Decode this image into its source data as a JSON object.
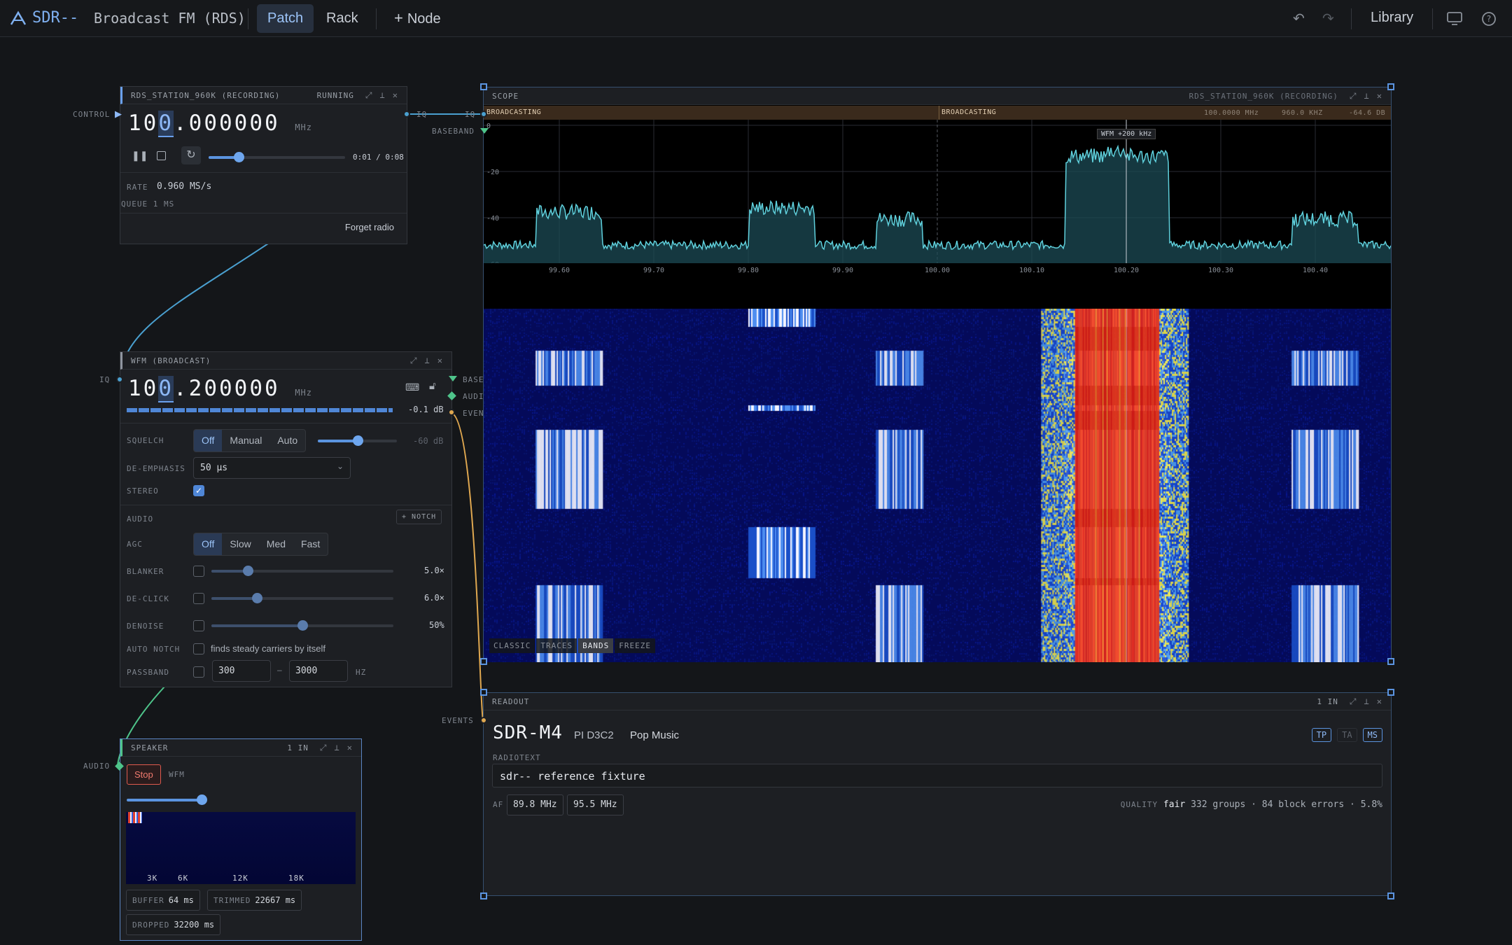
{
  "app": {
    "name": "SDR--",
    "session": "Broadcast FM (RDS)"
  },
  "topbar": {
    "tabs": [
      "Patch",
      "Rack"
    ],
    "add_node": "Node",
    "library": "Library"
  },
  "recorder": {
    "title": "RDS_STATION_960K (RECORDING)",
    "status": "RUNNING",
    "freq_pre": "10",
    "freq_cursor": "0",
    "freq_post": ".000000",
    "unit": "MHz",
    "playback_time": "0:01 / 0:08",
    "playback_progress": 0.22,
    "rate_label": "RATE",
    "rate_value": "0.960 MS/s",
    "queue": "QUEUE 1 MS",
    "forget": "Forget radio",
    "port_in": "CONTROL",
    "port_out": "IQ"
  },
  "wfm": {
    "title": "WFM (BROADCAST)",
    "freq_pre": "10",
    "freq_cursor": "0",
    "freq_post": ".200000",
    "unit": "MHz",
    "level_db": "-0.1 dB",
    "level": 0.97,
    "port_in": "IQ",
    "ports_out": [
      "BASE",
      "AUDI",
      "EVEN"
    ],
    "squelch": {
      "label": "SQUELCH",
      "options": [
        "Off",
        "Manual",
        "Auto"
      ],
      "selected": "Off",
      "value": "-60 dB",
      "level": 0.5
    },
    "deemph": {
      "label": "DE-EMPHASIS",
      "value": "50 µs"
    },
    "stereo": {
      "label": "STEREO",
      "checked": true
    },
    "audio": {
      "label": "AUDIO",
      "notch": "NOTCH"
    },
    "agc": {
      "label": "AGC",
      "options": [
        "Off",
        "Slow",
        "Med",
        "Fast"
      ],
      "selected": "Off"
    },
    "blanker": {
      "label": "BLANKER",
      "value": "5.0×",
      "level": 0.2
    },
    "declick": {
      "label": "DE-CLICK",
      "value": "6.0×",
      "level": 0.25
    },
    "denoise": {
      "label": "DENOISE",
      "value": "50%",
      "level": 0.5
    },
    "autonotch": {
      "label": "AUTO NOTCH",
      "text": "finds steady carriers by itself"
    },
    "passband": {
      "label": "PASSBAND",
      "low": "300",
      "high": "3000",
      "unit": "HZ"
    }
  },
  "scope": {
    "title": "SCOPE",
    "source": "RDS_STATION_960K (RECORDING)",
    "band_labels": [
      "BROADCASTING",
      "BROADCASTING"
    ],
    "readout": [
      "100.0000 MHz",
      "960.0 KHZ",
      "-64.6 DB"
    ],
    "marker": "WFM +200 kHz",
    "port_in": "IQ",
    "port_in2": "BASEBAND",
    "y_ticks": [
      "0",
      "-20",
      "-40",
      "-60"
    ],
    "x_ticks": [
      "99.60",
      "99.70",
      "99.80",
      "99.90",
      "100.00",
      "100.10",
      "100.20",
      "100.30",
      "100.40"
    ],
    "modes": [
      "CLASSIC",
      "TRACES",
      "BANDS",
      "FREEZE"
    ],
    "active_mode": "BANDS"
  },
  "readout": {
    "title": "READOUT",
    "count": "1 IN",
    "ps": "SDR-M4",
    "pi": "PI D3C2",
    "pty": "Pop Music",
    "flags": [
      "TP",
      "TA",
      "MS"
    ],
    "flags_on": [
      true,
      false,
      true
    ],
    "rt_label": "RADIOTEXT",
    "rt": "sdr-- reference fixture",
    "af_label": "AF",
    "af": [
      "89.8 MHz",
      "95.5 MHz"
    ],
    "quality_label": "QUALITY",
    "quality_value": "fair",
    "quality_stats": "332 groups · 84 block errors · 5.8%",
    "port_in": "EVENTS"
  },
  "speaker": {
    "title": "SPEAKER",
    "count": "1 IN",
    "stop": "Stop",
    "source": "WFM",
    "volume": 0.6,
    "freq_ticks": [
      "3K",
      "6K",
      "12K",
      "18K"
    ],
    "buffer_label": "BUFFER",
    "buffer": "64 ms",
    "trimmed_label": "TRIMMED",
    "trimmed": "22667 ms",
    "dropped_label": "DROPPED",
    "dropped": "32200 ms",
    "port_in": "AUDIO"
  },
  "colors": {
    "accent": "#5b94e0",
    "wire_iq": "#4aa0d0",
    "wire_audio": "#4ec48a",
    "wire_events": "#e0a850",
    "trace": "#5fd0dc"
  }
}
